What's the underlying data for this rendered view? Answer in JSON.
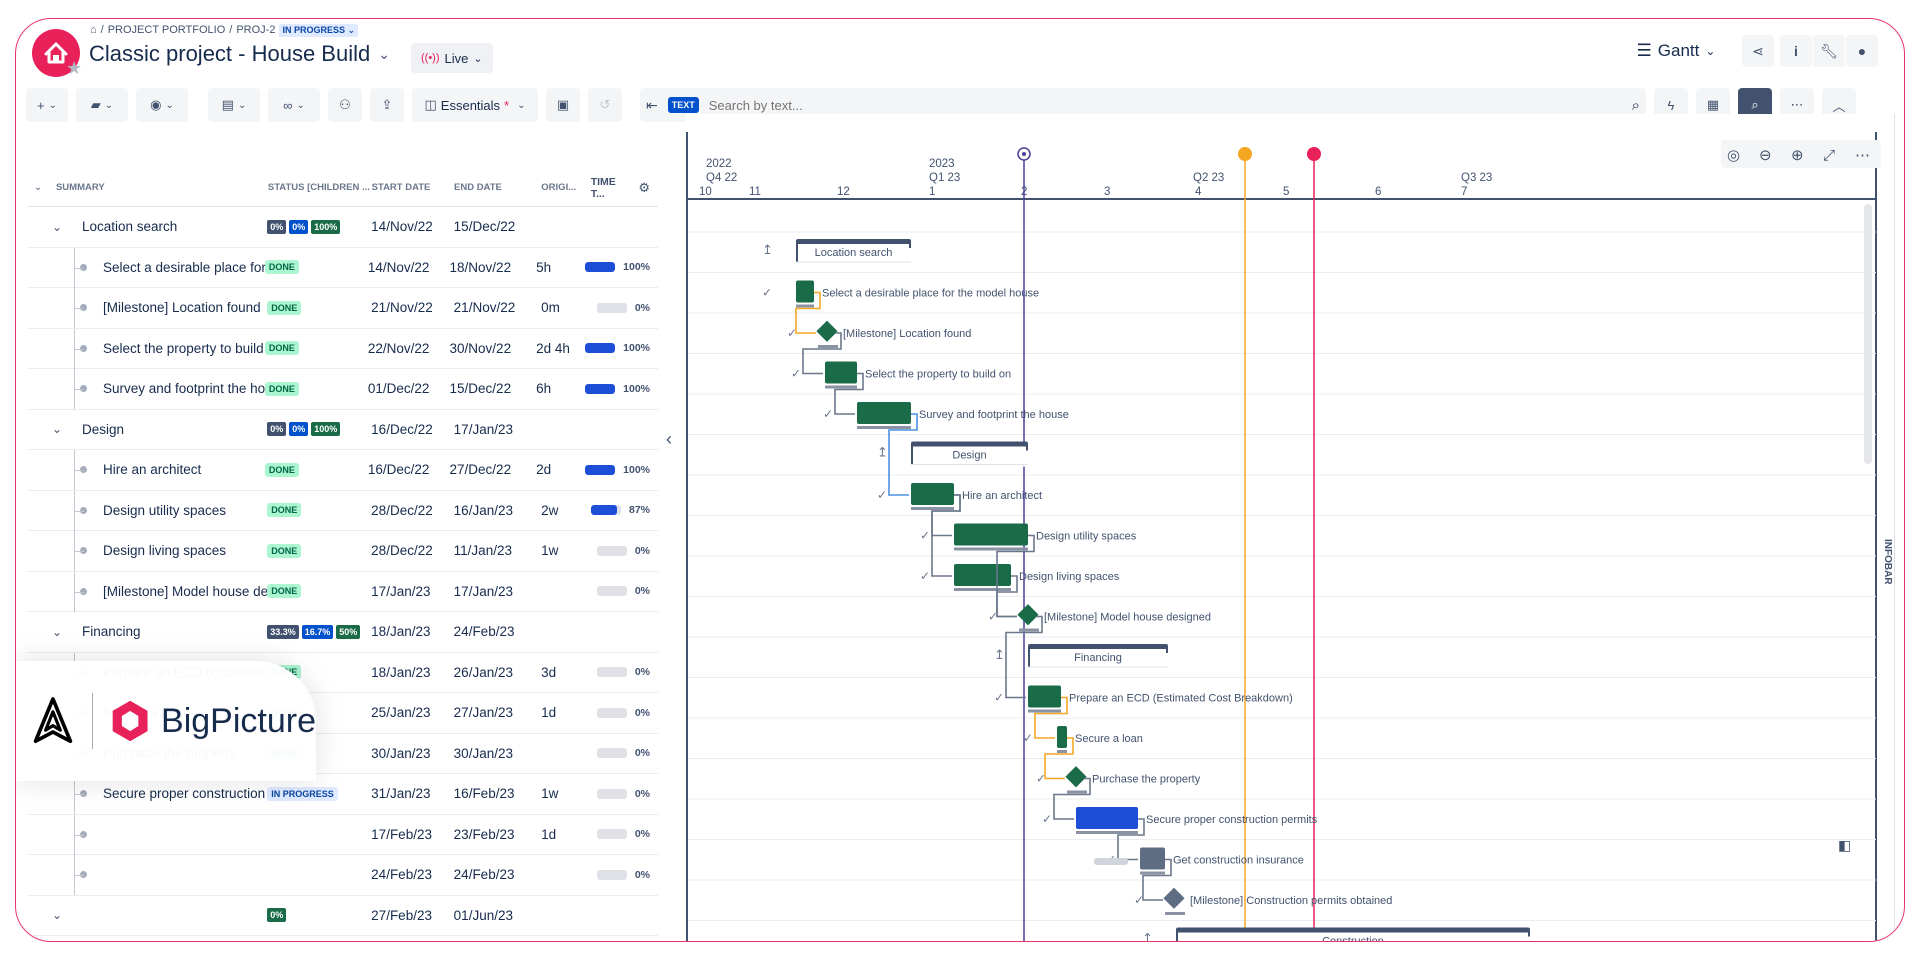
{
  "breadcrumb": {
    "home_icon": "home-icon",
    "portfolio": "PROJECT PORTFOLIO",
    "project_key": "PROJ-2",
    "status": "IN PROGRESS"
  },
  "header": {
    "title": "Classic project - House Build",
    "live_label": "Live",
    "view_label": "Gantt"
  },
  "toolbar": {
    "view_name": "Essentials",
    "unsaved_mark": "*",
    "search_tag": "TEXT",
    "search_placeholder": "Search by text..."
  },
  "columns": [
    "SUMMARY",
    "STATUS [CHILDREN ...",
    "START DATE",
    "END DATE",
    "ORIGI...",
    "TIME T..."
  ],
  "rows": [
    {
      "type": "group",
      "name": "Location search",
      "pcts": [
        "0%",
        "0%",
        "100%"
      ],
      "start": "14/Nov/22",
      "end": "15/Dec/22",
      "orig": "",
      "progress": null
    },
    {
      "type": "task",
      "name": "Select a desirable place for the...",
      "status": "DONE",
      "start": "14/Nov/22",
      "end": "18/Nov/22",
      "orig": "5h",
      "progress": 100,
      "progress_label": "100%"
    },
    {
      "type": "task",
      "name": "[Milestone] Location found",
      "status": "DONE",
      "start": "21/Nov/22",
      "end": "21/Nov/22",
      "orig": "0m",
      "progress": 0,
      "progress_label": "0%"
    },
    {
      "type": "task",
      "name": "Select the property to build on",
      "status": "DONE",
      "start": "22/Nov/22",
      "end": "30/Nov/22",
      "orig": "2d 4h",
      "progress": 100,
      "progress_label": "100%"
    },
    {
      "type": "task",
      "name": "Survey and footprint the house",
      "status": "DONE",
      "start": "01/Dec/22",
      "end": "15/Dec/22",
      "orig": "6h",
      "progress": 100,
      "progress_label": "100%"
    },
    {
      "type": "group",
      "name": "Design",
      "pcts": [
        "0%",
        "0%",
        "100%"
      ],
      "start": "16/Dec/22",
      "end": "17/Jan/23",
      "orig": "",
      "progress": null
    },
    {
      "type": "task",
      "name": "Hire an architect",
      "status": "DONE",
      "start": "16/Dec/22",
      "end": "27/Dec/22",
      "orig": "2d",
      "progress": 100,
      "progress_label": "100%"
    },
    {
      "type": "task",
      "name": "Design utility spaces",
      "status": "DONE",
      "start": "28/Dec/22",
      "end": "16/Jan/23",
      "orig": "2w",
      "progress": 87,
      "progress_label": "87%"
    },
    {
      "type": "task",
      "name": "Design living spaces",
      "status": "DONE",
      "start": "28/Dec/22",
      "end": "11/Jan/23",
      "orig": "1w",
      "progress": 0,
      "progress_label": "0%"
    },
    {
      "type": "task",
      "name": "[Milestone] Model house desig...",
      "status": "DONE",
      "start": "17/Jan/23",
      "end": "17/Jan/23",
      "orig": "",
      "progress": 0,
      "progress_label": "0%"
    },
    {
      "type": "group",
      "name": "Financing",
      "pcts": [
        "33.3%",
        "16.7%",
        "50%"
      ],
      "start": "18/Jan/23",
      "end": "24/Feb/23",
      "orig": "",
      "progress": null
    },
    {
      "type": "task",
      "name": "Prepare an ECD (Estimated Co...",
      "status": "DONE",
      "start": "18/Jan/23",
      "end": "26/Jan/23",
      "orig": "3d",
      "progress": 0,
      "progress_label": "0%"
    },
    {
      "type": "task",
      "name": "Secure a loan",
      "status": "DONE",
      "start": "25/Jan/23",
      "end": "27/Jan/23",
      "orig": "1d",
      "progress": 0,
      "progress_label": "0%"
    },
    {
      "type": "task",
      "name": "Purchase the property",
      "status": "DONE",
      "start": "30/Jan/23",
      "end": "30/Jan/23",
      "orig": "",
      "progress": 0,
      "progress_label": "0%"
    },
    {
      "type": "task",
      "name": "Secure proper construction pe...",
      "status": "IN PROGRESS",
      "start": "31/Jan/23",
      "end": "16/Feb/23",
      "orig": "1w",
      "progress": 0,
      "progress_label": "0%"
    },
    {
      "type": "task",
      "name": "",
      "status": "",
      "start": "17/Feb/23",
      "end": "23/Feb/23",
      "orig": "1d",
      "progress": 0,
      "progress_label": "0%"
    },
    {
      "type": "task",
      "name": "",
      "status": "",
      "start": "24/Feb/23",
      "end": "24/Feb/23",
      "orig": "",
      "progress": 0,
      "progress_label": "0%"
    },
    {
      "type": "group-partial",
      "name": "",
      "pcts": [
        "0%"
      ],
      "start": "27/Feb/23",
      "end": "01/Jun/23",
      "orig": "",
      "progress": null
    }
  ],
  "timeline": {
    "years": [
      {
        "label": "2022"
      },
      {
        "label": "2023"
      }
    ],
    "quarters": [
      "Q4 22",
      "Q1 23",
      "Q2 23",
      "Q3 23"
    ],
    "weeks": [
      "10",
      "11",
      "12",
      "1",
      "2",
      "3",
      "4",
      "5",
      "6",
      "7"
    ]
  },
  "gantt_labels": [
    "Location search",
    "Select a desirable place for the model house",
    "[Milestone] Location found",
    "Select the property to build on",
    "Survey and footprint the house",
    "Design",
    "Hire an architect",
    "Design utility spaces",
    "Design living spaces",
    "[Milestone] Model house designed",
    "Financing",
    "Prepare an ECD (Estimated Cost Breakdown)",
    "Secure a loan",
    "Purchase the property",
    "Secure proper construction permits",
    "Get construction insurance",
    "[Milestone] Construction permits obtained",
    "Construction"
  ],
  "infobar_label": "INFOBAR",
  "watermark": {
    "brand": "BigPicture"
  },
  "colors": {
    "accent": "#e8215b",
    "done_bar": "#1a6b48",
    "progress_bar": "#1d4ed8",
    "group_bar": "#42526e",
    "today_line": "#4b3f9b",
    "marker_orange": "#f5a623",
    "marker_red": "#e8215b"
  }
}
